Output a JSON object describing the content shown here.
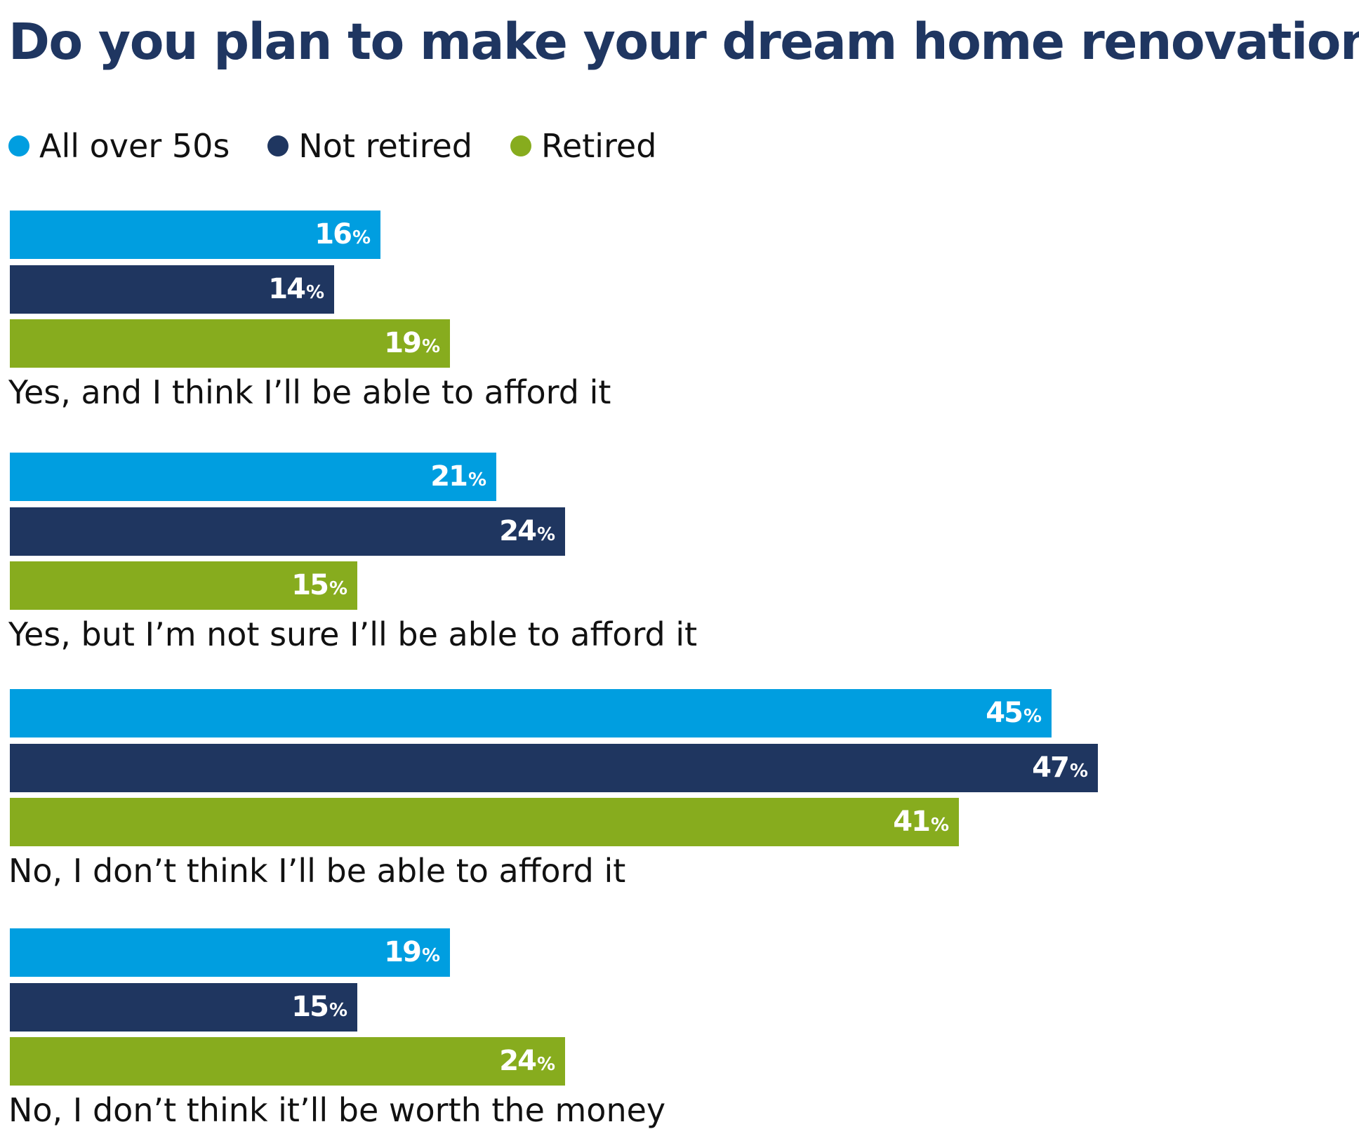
{
  "chart_data": {
    "type": "bar",
    "orientation": "horizontal",
    "title": "Do you plan to make your dream home renovation?",
    "categories": [
      "Yes, and I think I’ll be able to afford it",
      "Yes, but I’m not sure I’ll be able to afford it",
      "No, I don’t think I’ll be able to afford it",
      "No, I don’t think it’ll be worth the money"
    ],
    "series": [
      {
        "name": "All over 50s",
        "color": "#009ee0",
        "values": [
          16,
          21,
          45,
          19
        ]
      },
      {
        "name": "Not retired",
        "color": "#1f3660",
        "values": [
          14,
          24,
          47,
          15
        ]
      },
      {
        "name": "Retired",
        "color": "#87ac1e",
        "values": [
          19,
          15,
          41,
          24
        ]
      }
    ],
    "value_unit": "%",
    "xlim": [
      0,
      47
    ],
    "grid": false,
    "axes_visible": false,
    "legend": {
      "position": "top-left",
      "marker": "circle"
    }
  }
}
